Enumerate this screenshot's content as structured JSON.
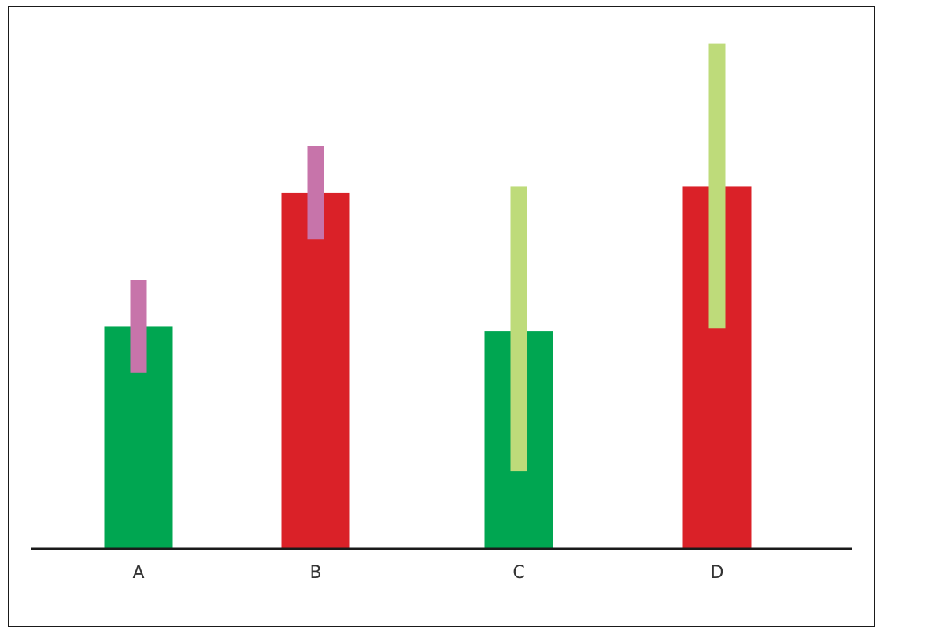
{
  "chart_data": {
    "type": "bar",
    "categories": [
      "A",
      "B",
      "C",
      "D"
    ],
    "values": [
      100,
      160,
      98,
      163
    ],
    "bar_colors": [
      "#00a651",
      "#da2128",
      "#00a651",
      "#da2128"
    ],
    "ranges": [
      {
        "low": 79,
        "high": 121,
        "color": "#c774aa"
      },
      {
        "low": 139,
        "high": 181,
        "color": "#c774aa"
      },
      {
        "low": 35,
        "high": 163,
        "color": "#bedb7a"
      },
      {
        "low": 99,
        "high": 227,
        "color": "#bedb7a"
      }
    ],
    "ylim": [
      0,
      235
    ],
    "axis_color": "#1a1a1a"
  }
}
